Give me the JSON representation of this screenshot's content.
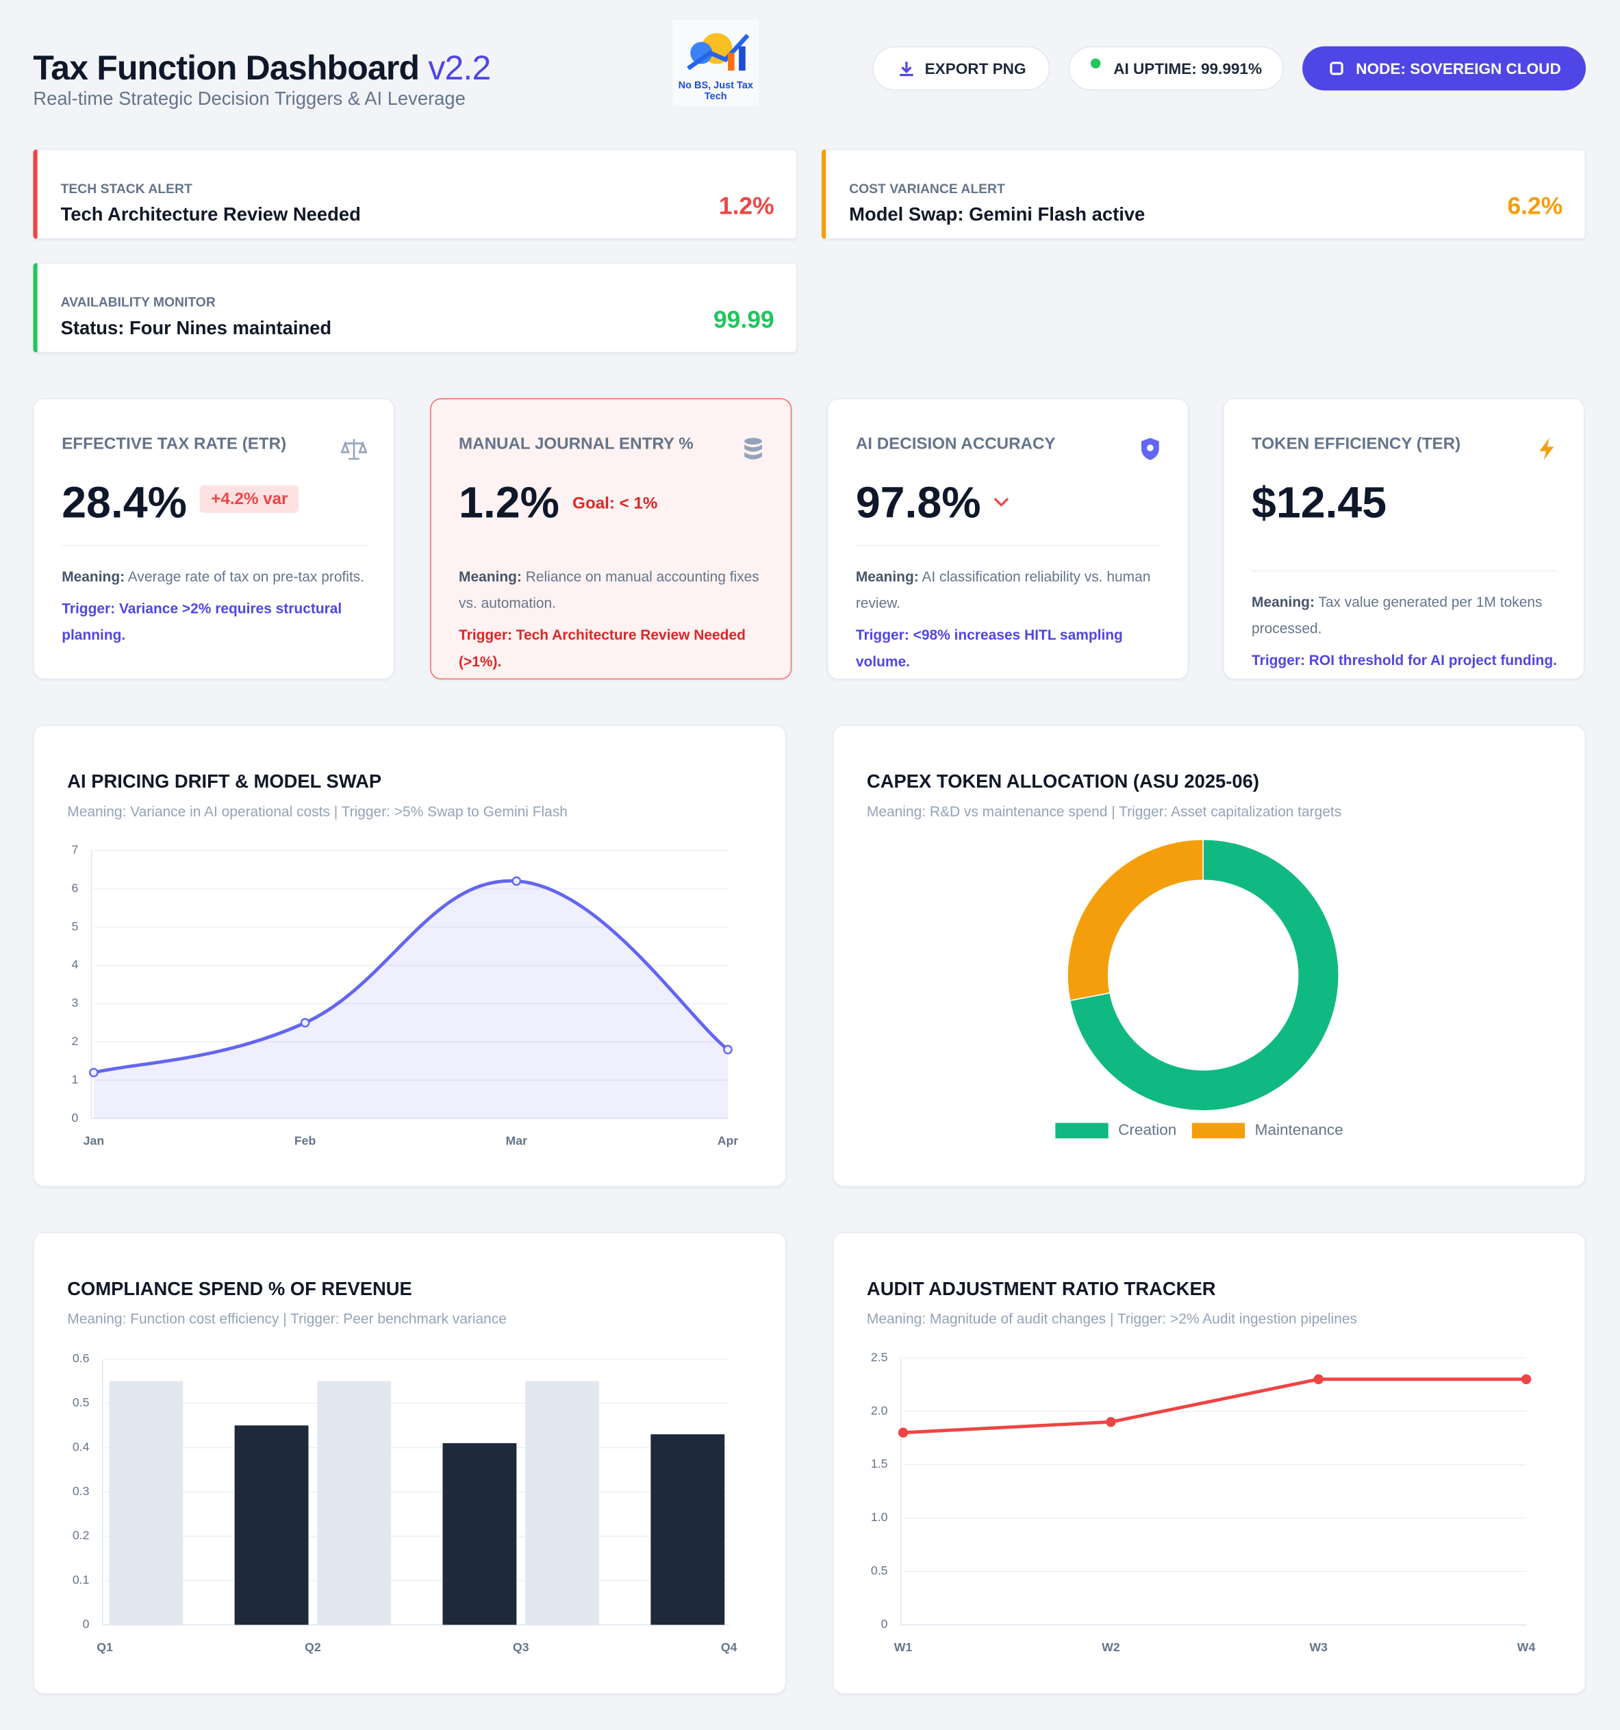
{
  "header": {
    "title": "Tax Function Dashboard",
    "version": "v2.2",
    "subtitle": "Real-time Strategic Decision Triggers & AI Leverage",
    "logo_text": "No BS, Just Tax Tech",
    "buttons": [
      "EXPORT PNG",
      "AI UPTIME: 99.991%",
      "NODE: SOVEREIGN CLOUD"
    ]
  },
  "alerts": [
    {
      "label": "TECH STACK ALERT",
      "title": "Tech Architecture Review Needed",
      "value": "1.2%",
      "color": "#ef4444"
    },
    {
      "label": "COST VARIANCE ALERT",
      "title": "Model Swap: Gemini Flash active",
      "value": "6.2%",
      "color": "#f59e0b"
    },
    {
      "label": "AVAILABILITY MONITOR",
      "title": "Status: Four Nines maintained",
      "value": "99.99",
      "color": "#22c55e"
    }
  ],
  "kpis": [
    {
      "label": "EFFECTIVE TAX RATE (ETR)",
      "value": "28.4%",
      "badge": "+4.2% var",
      "meaning_label": "Meaning:",
      "meaning": "Average rate of tax on pre-tax profits.",
      "trigger": "Trigger: Variance >2% requires structural planning."
    },
    {
      "label": "MANUAL JOURNAL ENTRY %",
      "value": "1.2%",
      "badge": "Goal: < 1%",
      "meaning_label": "Meaning:",
      "meaning": "Reliance on manual accounting fixes vs. automation.",
      "trigger": "Trigger: Tech Architecture Review Needed (>1%)."
    },
    {
      "label": "AI DECISION ACCURACY",
      "value": "97.8%",
      "meaning_label": "Meaning:",
      "meaning": "AI classification reliability vs. human review.",
      "trigger": "Trigger: <98% increases HITL sampling volume."
    },
    {
      "label": "TOKEN EFFICIENCY (TER)",
      "value": "$12.45",
      "meaning_label": "Meaning:",
      "meaning": "Tax value generated per 1M tokens processed.",
      "trigger": "Trigger: ROI threshold for AI project funding."
    }
  ],
  "chart_data": [
    {
      "type": "line",
      "title": "AI PRICING DRIFT & MODEL SWAP",
      "subtitle": "Meaning: Variance in AI operational costs | Trigger: >5% Swap to Gemini Flash",
      "categories": [
        "Jan",
        "Feb",
        "Mar",
        "Apr"
      ],
      "values": [
        1.2,
        2.5,
        6.2,
        1.8
      ],
      "color": "#6366f1",
      "fill": true,
      "smooth": true,
      "ylim": [
        0,
        7
      ],
      "yticks": [
        0,
        1,
        2,
        3,
        4,
        5,
        6,
        7
      ],
      "grid": true
    },
    {
      "type": "doughnut",
      "title": "CAPEX TOKEN ALLOCATION (ASU 2025-06)",
      "subtitle": "Meaning: R&D vs maintenance spend | Trigger: Asset capitalization targets",
      "categories": [
        "Creation",
        "Maintenance"
      ],
      "values": [
        72,
        28
      ],
      "colors": [
        "#10b981",
        "#f59e0b"
      ],
      "legend": "bottom"
    },
    {
      "type": "bar",
      "title": "COMPLIANCE SPEND % OF REVENUE",
      "subtitle": "Meaning: Function cost efficiency | Trigger: Peer benchmark variance",
      "categories": [
        "Q1",
        "Q2",
        "Q3",
        "Q4"
      ],
      "series": [
        {
          "color": "#1e293b",
          "values": [
            null,
            0.45,
            0.41,
            0.43
          ]
        },
        {
          "color": "#e2e8f0",
          "values": [
            0.55,
            0.55,
            0.55,
            null
          ]
        }
      ],
      "ylim": [
        0,
        0.6
      ],
      "yticks": [
        0,
        0.1,
        0.2,
        0.3,
        0.4,
        0.5,
        0.6
      ],
      "grid": true
    },
    {
      "type": "line",
      "title": "AUDIT ADJUSTMENT RATIO TRACKER",
      "subtitle": "Meaning: Magnitude of audit changes | Trigger: >2% Audit ingestion pipelines",
      "categories": [
        "W1",
        "W2",
        "W3",
        "W4"
      ],
      "values": [
        1.8,
        1.9,
        2.3,
        2.3
      ],
      "color": "#ef4444",
      "fill": false,
      "smooth": false,
      "ylim": [
        0,
        2.5
      ],
      "yticks": [
        0,
        0.5,
        {
          "value": 1,
          "label": "1.0"
        },
        1.5,
        {
          "value": 2,
          "label": "2.0"
        },
        2.5
      ],
      "grid": true
    }
  ]
}
